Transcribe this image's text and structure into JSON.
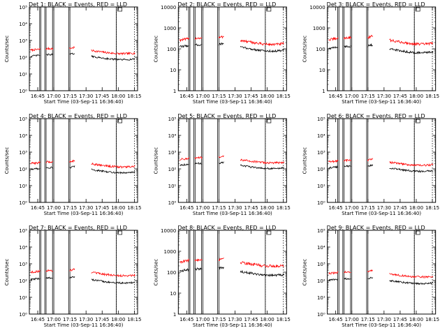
{
  "chart_data": [
    {
      "type": "line",
      "title": "Det 1: BLACK = Events, RED = LLD",
      "xlabel": "Start Time (03-Sep-11 16:36:40)",
      "ylabel": "Counts/sec",
      "yscale": "log",
      "ylim": [
        1,
        100000
      ],
      "yticks": [
        {
          "v": 1,
          "t": "10⁰"
        },
        {
          "v": 10,
          "t": "10¹"
        },
        {
          "v": 100,
          "t": "10²"
        },
        {
          "v": 1000,
          "t": "10³"
        },
        {
          "v": 10000,
          "t": "10⁴"
        },
        {
          "v": 100000,
          "t": "10⁵"
        }
      ],
      "xlim": [
        16.62,
        18.3
      ],
      "xticks": [
        "16:45",
        "17:00",
        "17:15",
        "17:30",
        "17:45",
        "18:00",
        "18:15"
      ],
      "series": [
        {
          "color": "#ff0000",
          "base": 250,
          "spike": 2000,
          "noise": 0.12
        },
        {
          "color": "#000000",
          "base": 110,
          "spike": 900,
          "noise": 0.1
        }
      ]
    },
    {
      "type": "line",
      "title": "Det 2: BLACK = Events, RED = LLD",
      "xlabel": "Start Time (03-Sep-11 16:36:40)",
      "ylabel": "Counts/sec",
      "yscale": "log",
      "ylim": [
        1,
        10000
      ],
      "yticks": [
        {
          "v": 1,
          "t": "1"
        },
        {
          "v": 10,
          "t": "10"
        },
        {
          "v": 100,
          "t": "100"
        },
        {
          "v": 1000,
          "t": "1000"
        },
        {
          "v": 10000,
          "t": "10000"
        }
      ],
      "xlim": [
        16.62,
        18.3
      ],
      "xticks": [
        "16:45",
        "17:00",
        "17:15",
        "17:30",
        "17:45",
        "18:00",
        "18:15"
      ],
      "series": [
        {
          "color": "#ff0000",
          "base": 250,
          "spike": 2500,
          "noise": 0.12
        },
        {
          "color": "#000000",
          "base": 120,
          "spike": 900,
          "noise": 0.1
        }
      ]
    },
    {
      "type": "line",
      "title": "Det 3: BLACK = Events, RED = LLD",
      "xlabel": "Start Time (03-Sep-11 16:36:40)",
      "ylabel": "Counts/sec",
      "yscale": "log",
      "ylim": [
        1,
        10000
      ],
      "yticks": [
        {
          "v": 1,
          "t": "1"
        },
        {
          "v": 10,
          "t": "10"
        },
        {
          "v": 100,
          "t": "100"
        },
        {
          "v": 1000,
          "t": "1000"
        },
        {
          "v": 10000,
          "t": "10000"
        }
      ],
      "xlim": [
        16.62,
        18.3
      ],
      "xticks": [
        "16:45",
        "17:00",
        "17:15",
        "17:30",
        "17:45",
        "18:00",
        "18:15"
      ],
      "series": [
        {
          "color": "#ff0000",
          "base": 260,
          "spike": 2000,
          "noise": 0.12
        },
        {
          "color": "#000000",
          "base": 100,
          "spike": 800,
          "noise": 0.1
        }
      ]
    },
    {
      "type": "line",
      "title": "Det 4: BLACK = Events, RED = LLD",
      "xlabel": "Start Time (03-Sep-11 16:36:40)",
      "ylabel": "Counts/sec",
      "yscale": "log",
      "ylim": [
        1,
        100000
      ],
      "yticks": [
        {
          "v": 1,
          "t": "10⁰"
        },
        {
          "v": 10,
          "t": "10¹"
        },
        {
          "v": 100,
          "t": "10²"
        },
        {
          "v": 1000,
          "t": "10³"
        },
        {
          "v": 10000,
          "t": "10⁴"
        },
        {
          "v": 100000,
          "t": "10⁵"
        }
      ],
      "xlim": [
        16.62,
        18.3
      ],
      "xticks": [
        "16:45",
        "17:00",
        "17:15",
        "17:30",
        "17:45",
        "18:00",
        "18:15"
      ],
      "series": [
        {
          "color": "#ff0000",
          "base": 200,
          "spike": 2000,
          "noise": 0.12
        },
        {
          "color": "#000000",
          "base": 90,
          "spike": 900,
          "noise": 0.1
        }
      ]
    },
    {
      "type": "line",
      "title": "Det 5: BLACK = Events, RED = LLD",
      "xlabel": "Start Time (03-Sep-11 16:36:40)",
      "ylabel": "Counts/sec",
      "yscale": "log",
      "ylim": [
        1,
        100000
      ],
      "yticks": [
        {
          "v": 1,
          "t": "10⁰"
        },
        {
          "v": 10,
          "t": "10¹"
        },
        {
          "v": 100,
          "t": "10²"
        },
        {
          "v": 1000,
          "t": "10³"
        },
        {
          "v": 10000,
          "t": "10⁴"
        },
        {
          "v": 100000,
          "t": "10⁵"
        }
      ],
      "xlim": [
        16.62,
        18.3
      ],
      "xticks": [
        "16:45",
        "17:00",
        "17:15",
        "17:30",
        "17:45",
        "18:00",
        "18:15"
      ],
      "series": [
        {
          "color": "#ff0000",
          "base": 350,
          "spike": 2500,
          "noise": 0.12
        },
        {
          "color": "#000000",
          "base": 160,
          "spike": 1000,
          "noise": 0.1
        }
      ]
    },
    {
      "type": "line",
      "title": "Det 6: BLACK = Events, RED = LLD",
      "xlabel": "Start Time (03-Sep-11 16:36:40)",
      "ylabel": "Counts/sec",
      "yscale": "log",
      "ylim": [
        1,
        100000
      ],
      "yticks": [
        {
          "v": 1,
          "t": "10⁰"
        },
        {
          "v": 10,
          "t": "10¹"
        },
        {
          "v": 100,
          "t": "10²"
        },
        {
          "v": 1000,
          "t": "10³"
        },
        {
          "v": 10000,
          "t": "10⁴"
        },
        {
          "v": 100000,
          "t": "10⁵"
        }
      ],
      "xlim": [
        16.62,
        18.3
      ],
      "xticks": [
        "16:45",
        "17:00",
        "17:15",
        "17:30",
        "17:45",
        "18:00",
        "18:15"
      ],
      "series": [
        {
          "color": "#ff0000",
          "base": 250,
          "spike": 2500,
          "noise": 0.12
        },
        {
          "color": "#000000",
          "base": 110,
          "spike": 1000,
          "noise": 0.1
        }
      ]
    },
    {
      "type": "line",
      "title": "Det 7: BLACK = Events, RED = LLD",
      "xlabel": "Start Time (03-Sep-11 16:36:40)",
      "ylabel": "Counts/sec",
      "yscale": "log",
      "ylim": [
        1,
        100000
      ],
      "yticks": [
        {
          "v": 1,
          "t": "10⁰"
        },
        {
          "v": 10,
          "t": "10¹"
        },
        {
          "v": 100,
          "t": "10²"
        },
        {
          "v": 1000,
          "t": "10³"
        },
        {
          "v": 10000,
          "t": "10⁴"
        },
        {
          "v": 100000,
          "t": "10⁵"
        }
      ],
      "xlim": [
        16.62,
        18.3
      ],
      "xticks": [
        "16:45",
        "17:00",
        "17:15",
        "17:30",
        "17:45",
        "18:00",
        "18:15"
      ],
      "series": [
        {
          "color": "#ff0000",
          "base": 300,
          "spike": 2500,
          "noise": 0.12
        },
        {
          "color": "#000000",
          "base": 110,
          "spike": 1000,
          "noise": 0.1
        }
      ]
    },
    {
      "type": "line",
      "title": "Det 8: BLACK = Events, RED = LLD",
      "xlabel": "Start Time (03-Sep-11 16:36:40)",
      "ylabel": "Counts/sec",
      "yscale": "log",
      "ylim": [
        1,
        10000
      ],
      "yticks": [
        {
          "v": 1,
          "t": "1"
        },
        {
          "v": 10,
          "t": "10"
        },
        {
          "v": 100,
          "t": "100"
        },
        {
          "v": 1000,
          "t": "1000"
        },
        {
          "v": 10000,
          "t": "10000"
        }
      ],
      "xlim": [
        16.62,
        18.3
      ],
      "xticks": [
        "16:45",
        "17:00",
        "17:15",
        "17:30",
        "17:45",
        "18:00",
        "18:15"
      ],
      "series": [
        {
          "color": "#ff0000",
          "base": 300,
          "spike": 1500,
          "noise": 0.14
        },
        {
          "color": "#000000",
          "base": 110,
          "spike": 700,
          "noise": 0.12
        }
      ]
    },
    {
      "type": "line",
      "title": "Det 9: BLACK = Events, RED = LLD",
      "xlabel": "Start Time (03-Sep-11 16:36:40)",
      "ylabel": "Counts/sec",
      "yscale": "log",
      "ylim": [
        1,
        100000
      ],
      "yticks": [
        {
          "v": 1,
          "t": "10⁰"
        },
        {
          "v": 10,
          "t": "10¹"
        },
        {
          "v": 100,
          "t": "10²"
        },
        {
          "v": 1000,
          "t": "10³"
        },
        {
          "v": 10000,
          "t": "10⁴"
        },
        {
          "v": 100000,
          "t": "10⁵"
        }
      ],
      "xlim": [
        16.62,
        18.3
      ],
      "xticks": [
        "16:45",
        "17:00",
        "17:15",
        "17:30",
        "17:45",
        "18:00",
        "18:15"
      ],
      "series": [
        {
          "color": "#ff0000",
          "base": 250,
          "spike": 1800,
          "noise": 0.12
        },
        {
          "color": "#000000",
          "base": 100,
          "spike": 800,
          "noise": 0.1
        }
      ]
    }
  ]
}
